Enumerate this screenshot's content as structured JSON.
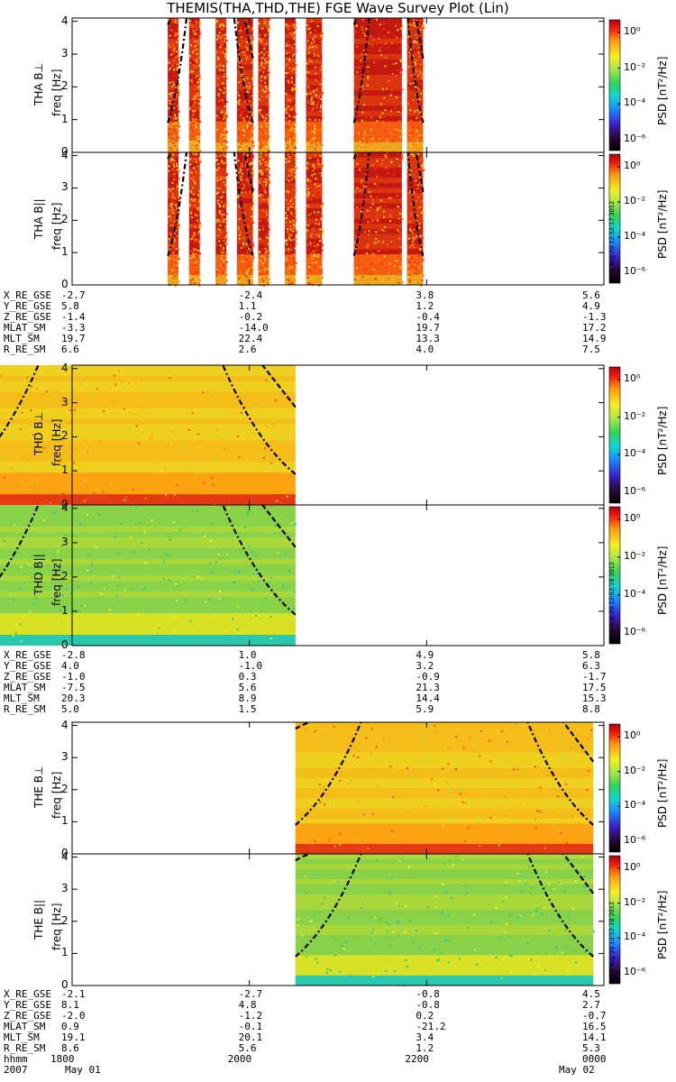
{
  "title": "THEMIS(THA,THD,THE) FGE Wave Survey Plot (Lin)",
  "stamps": [
    "Wed Aug 29 12:52:17 2012",
    "Wed Aug 29 12:52:18 2012",
    "Wed Aug 29 12:52:18 2012"
  ],
  "colorbar": {
    "label": "PSD [nT²/Hz]",
    "ticks": [
      "10⁰",
      "10⁻²",
      "10⁻⁴",
      "10⁻⁶"
    ]
  },
  "ephemeris_labels": [
    "X_RE_GSE",
    "Y_RE_GSE",
    "Z_RE_GSE",
    "MLAT_SM",
    "MLT_SM",
    "R_RE_SM"
  ],
  "time_labels": [
    "hhmm",
    "2007"
  ],
  "chart_data": [
    {
      "type": "heatmap",
      "probe": "THA",
      "panels": [
        {
          "label": "THA B⊥",
          "ylabel": "freq [Hz]"
        },
        {
          "label": "THA B||",
          "ylabel": "freq [Hz]"
        }
      ],
      "yticks": [
        "0",
        "1",
        "2",
        "3",
        "4"
      ],
      "ylim": [
        0,
        4.1
      ],
      "data_segments": [
        [
          1.98,
          2.0
        ],
        [
          2.02,
          2.04
        ],
        [
          2.07,
          2.09
        ],
        [
          2.11,
          2.14
        ],
        [
          2.15,
          2.17
        ],
        [
          2.2,
          2.22
        ],
        [
          2.24,
          2.27
        ],
        [
          2.33,
          2.42
        ],
        [
          2.43,
          2.46
        ]
      ],
      "ephemeris": [
        [
          "-2.7",
          "-2.4",
          "3.8",
          "5.6"
        ],
        [
          "5.8",
          "1.1",
          "1.2",
          "4.9"
        ],
        [
          "-1.4",
          "-0.2",
          "-0.4",
          "-1.3"
        ],
        [
          "-3.3",
          "-14.0",
          "19.7",
          "17.2"
        ],
        [
          "19.7",
          "22.4",
          "13.3",
          "14.9"
        ],
        [
          "6.6",
          "2.6",
          "4.0",
          "7.5"
        ]
      ]
    },
    {
      "type": "heatmap",
      "probe": "THD",
      "panels": [
        {
          "label": "THD B⊥",
          "ylabel": "freq [Hz]"
        },
        {
          "label": "THD B||",
          "ylabel": "freq [Hz]"
        }
      ],
      "yticks": [
        "0",
        "1",
        "2",
        "3",
        "4"
      ],
      "ylim": [
        0,
        4.1
      ],
      "data_segments": [
        [
          1.6,
          2.22
        ]
      ],
      "ephemeris": [
        [
          "-2.8",
          "1.0",
          "4.9",
          "5.8"
        ],
        [
          "4.0",
          "-1.0",
          "3.2",
          "6.3"
        ],
        [
          "-1.0",
          "0.3",
          "-0.9",
          "-1.7"
        ],
        [
          "-7.5",
          "5.6",
          "21.3",
          "17.5"
        ],
        [
          "20.3",
          "8.9",
          "14.4",
          "15.3"
        ],
        [
          "5.0",
          "1.5",
          "5.9",
          "8.8"
        ]
      ]
    },
    {
      "type": "heatmap",
      "probe": "THE",
      "panels": [
        {
          "label": "THE B⊥",
          "ylabel": "freq [Hz]"
        },
        {
          "label": "THE B||",
          "ylabel": "freq [Hz]"
        }
      ],
      "yticks": [
        "0",
        "1",
        "2",
        "3",
        "4"
      ],
      "ylim": [
        0,
        4.1
      ],
      "data_segments": [
        [
          2.22,
          2.78
        ]
      ],
      "ephemeris": [
        [
          "-2.1",
          "-2.7",
          "-0.8",
          "4.5"
        ],
        [
          "8.1",
          "4.8",
          "-0.8",
          "2.7"
        ],
        [
          "-2.0",
          "-1.2",
          "0.2",
          "-0.7"
        ],
        [
          "0.9",
          "-0.1",
          "-21.2",
          "16.5"
        ],
        [
          "19.1",
          "20.1",
          "3.4",
          "14.1"
        ],
        [
          "8.6",
          "5.6",
          "1.2",
          "5.3"
        ]
      ]
    }
  ],
  "x_axis": {
    "hhmm": [
      "1800",
      "2000",
      "2200",
      "0000"
    ],
    "dates": [
      "May 01",
      "May 02"
    ]
  }
}
